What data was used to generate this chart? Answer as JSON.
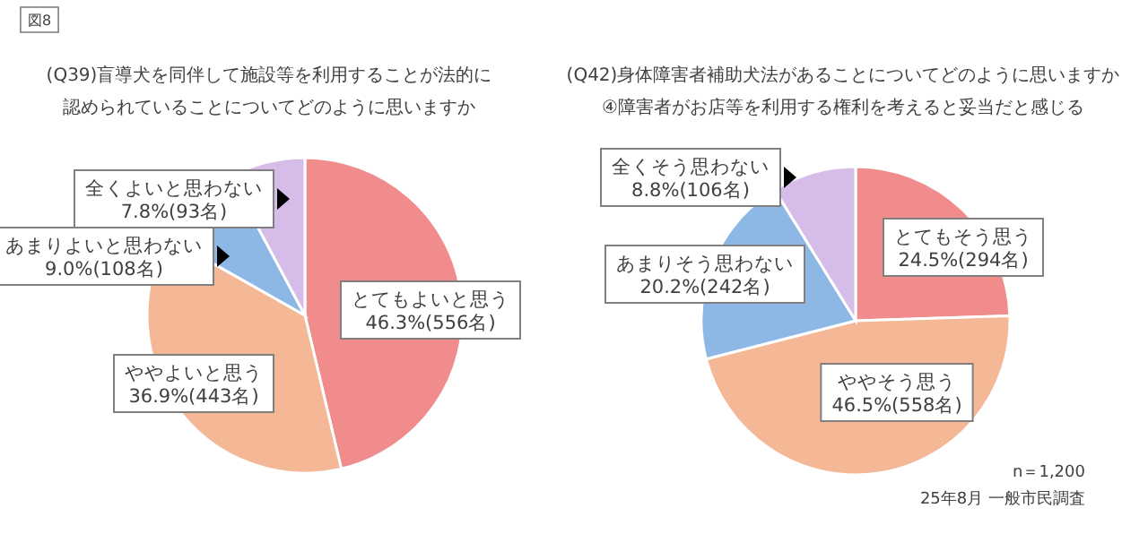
{
  "chart_data": [
    {
      "type": "pie",
      "title": "(Q39)盲導犬を同伴して施設等を利用することが法的に",
      "subtitle": "認められていることについてどのように思いますか",
      "annotations": [
        "図8"
      ],
      "categories": [
        "とてもよいと思う",
        "ややよいと思う",
        "あまりよいと思わない",
        "全くよいと思わない"
      ],
      "values": [
        46.3,
        36.9,
        9.0,
        7.8
      ],
      "value_labels": [
        "46.3%(556名)",
        "36.9%(443名)",
        "9.0%(108名)",
        "7.8%(93名)"
      ],
      "colors": [
        "#f08c8c",
        "#f4b896",
        "#8db8e6",
        "#d6bde9"
      ]
    },
    {
      "type": "pie",
      "title": "(Q42)身体障害者補助犬法があることについてどのように思いますか",
      "subtitle": "④障害者がお店等を利用する権利を考えると妥当だと感じる",
      "annotations": [
        "n＝1,200",
        "25年8月 一般市民調査"
      ],
      "categories": [
        "とてもそう思う",
        "ややそう思う",
        "あまりそう思わない",
        "全くそう思わない"
      ],
      "values": [
        24.5,
        46.5,
        20.2,
        8.8
      ],
      "value_labels": [
        "24.5%(294名)",
        "46.5%(558名)",
        "20.2%(242名)",
        "8.8%(106名)"
      ],
      "colors": [
        "#f08c8c",
        "#f4b896",
        "#8db8e6",
        "#d6bde9"
      ]
    }
  ]
}
